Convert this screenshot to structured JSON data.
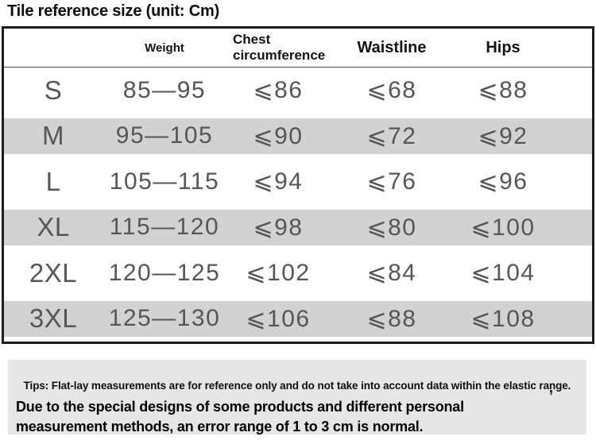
{
  "title": "Tile reference size (unit: Cm)",
  "table": {
    "headers": {
      "size": "",
      "weight": "Weight",
      "chest": "Chest circumference",
      "waist": "Waistline",
      "hips": "Hips"
    },
    "rows": [
      {
        "size": "S",
        "weight": "85—95",
        "chest": "⩽86",
        "waist": "⩽68",
        "hips": "⩽88"
      },
      {
        "size": "M",
        "weight": "95—105",
        "chest": "⩽90",
        "waist": "⩽72",
        "hips": "⩽92"
      },
      {
        "size": "L",
        "weight": "105—115",
        "chest": "⩽94",
        "waist": "⩽76",
        "hips": "⩽96"
      },
      {
        "size": "XL",
        "weight": "115—120",
        "chest": "⩽98",
        "waist": "⩽80",
        "hips": "⩽100"
      },
      {
        "size": "2XL",
        "weight": "120—125",
        "chest": "⩽102",
        "waist": "⩽84",
        "hips": "⩽104"
      },
      {
        "size": "3XL",
        "weight": "125—130",
        "chest": "⩽106",
        "waist": "⩽88",
        "hips": "⩽108"
      }
    ]
  },
  "tips": {
    "line1": "Tips: Flat-lay measurements are for reference only and do not take into account data within the elastic range.",
    "comma": ",",
    "line2": "Due to the special designs of some products and different personal measurement methods, an error range of 1 to 3 cm is normal."
  },
  "colors": {
    "row_stripe": "#d2d2d2",
    "tips_background": "#e6e6e6",
    "table_border": "#1d1d1d",
    "data_text": "#55565a",
    "heading_text": "#0d0d0d"
  }
}
